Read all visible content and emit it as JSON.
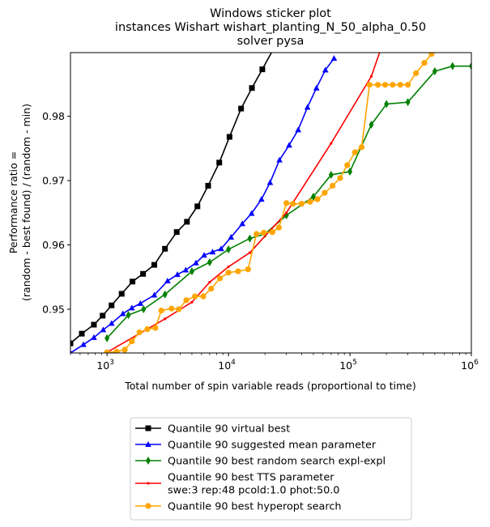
{
  "chart_data": {
    "type": "line",
    "title": [
      "Windows sticker plot",
      "instances Wishart wishart_planting_N_50_alpha_0.50",
      "solver pysa"
    ],
    "xlabel": "Total number of spin variable reads (proportional to time)",
    "ylabel": [
      "Performance ratio =",
      "(random - best found) / (random - min)"
    ],
    "xscale": "log",
    "xlim": [
      500,
      1000000
    ],
    "ylim": [
      0.9432,
      0.9899
    ],
    "x_ticks": [
      {
        "value": 1000,
        "base": "10",
        "exp": "3"
      },
      {
        "value": 10000,
        "base": "10",
        "exp": "4"
      },
      {
        "value": 100000,
        "base": "10",
        "exp": "5"
      },
      {
        "value": 1000000,
        "base": "10",
        "exp": "6"
      }
    ],
    "y_ticks": [
      {
        "value": 0.95,
        "label": "0.95"
      },
      {
        "value": 0.96,
        "label": "0.96"
      },
      {
        "value": 0.97,
        "label": "0.97"
      },
      {
        "value": 0.98,
        "label": "0.98"
      }
    ],
    "legend_position": "below plot",
    "series": [
      {
        "name": [
          "Quantile 90 virtual best"
        ],
        "color": "#000000",
        "marker": "square",
        "points": [
          [
            500,
            0.9447
          ],
          [
            620,
            0.9462
          ],
          [
            780,
            0.9476
          ],
          [
            920,
            0.949
          ],
          [
            1090,
            0.9506
          ],
          [
            1320,
            0.9524
          ],
          [
            1620,
            0.9543
          ],
          [
            1980,
            0.9555
          ],
          [
            2450,
            0.9569
          ],
          [
            3000,
            0.9594
          ],
          [
            3750,
            0.962
          ],
          [
            4550,
            0.9636
          ],
          [
            5550,
            0.966
          ],
          [
            6800,
            0.9692
          ],
          [
            8400,
            0.9728
          ],
          [
            10200,
            0.9768
          ],
          [
            12700,
            0.9812
          ],
          [
            15600,
            0.9844
          ],
          [
            19000,
            0.9873
          ],
          [
            23500,
            0.9905
          ]
        ]
      },
      {
        "name": [
          "Quantile 90 suggested mean parameter"
        ],
        "color": "#0000ff",
        "marker": "triangle",
        "points": [
          [
            500,
            0.9432
          ],
          [
            640,
            0.9445
          ],
          [
            780,
            0.9456
          ],
          [
            930,
            0.9468
          ],
          [
            1090,
            0.9478
          ],
          [
            1350,
            0.9493
          ],
          [
            1600,
            0.9502
          ],
          [
            1880,
            0.9509
          ],
          [
            2450,
            0.9522
          ],
          [
            3150,
            0.9544
          ],
          [
            3800,
            0.9554
          ],
          [
            4450,
            0.9561
          ],
          [
            5400,
            0.9572
          ],
          [
            6300,
            0.9584
          ],
          [
            7400,
            0.9589
          ],
          [
            8700,
            0.9594
          ],
          [
            10500,
            0.9612
          ],
          [
            13000,
            0.9633
          ],
          [
            15500,
            0.9649
          ],
          [
            18700,
            0.9671
          ],
          [
            22000,
            0.9697
          ],
          [
            26300,
            0.9732
          ],
          [
            31600,
            0.9755
          ],
          [
            37500,
            0.9779
          ],
          [
            44700,
            0.9814
          ],
          [
            53000,
            0.9844
          ],
          [
            62800,
            0.9872
          ],
          [
            74000,
            0.989
          ]
        ]
      },
      {
        "name": [
          "Quantile 90  best random search expl-expl"
        ],
        "color": "#008000",
        "marker": "diamond",
        "points": [
          [
            1000,
            0.9455
          ],
          [
            1500,
            0.9491
          ],
          [
            2000,
            0.95
          ],
          [
            3000,
            0.9523
          ],
          [
            5000,
            0.9559
          ],
          [
            7000,
            0.9573
          ],
          [
            10000,
            0.9593
          ],
          [
            15000,
            0.961
          ],
          [
            20000,
            0.9617
          ],
          [
            30000,
            0.9646
          ],
          [
            50000,
            0.9675
          ],
          [
            70000,
            0.9709
          ],
          [
            100000,
            0.9714
          ],
          [
            150000,
            0.9787
          ],
          [
            200000,
            0.9819
          ],
          [
            300000,
            0.9822
          ],
          [
            500000,
            0.987
          ],
          [
            700000,
            0.9878
          ],
          [
            1000000,
            0.9878
          ]
        ]
      },
      {
        "name": [
          "Quantile 90 best TTS parameter",
          "swe:3 rep:48 pcold:1.0 phot:50.0"
        ],
        "color": "#ff0000",
        "marker": "dot",
        "points": [
          [
            1000,
            0.9433
          ],
          [
            3000,
            0.9485
          ],
          [
            5000,
            0.9511
          ],
          [
            7000,
            0.9542
          ],
          [
            10000,
            0.9566
          ],
          [
            15000,
            0.9588
          ],
          [
            30000,
            0.965
          ],
          [
            70000,
            0.9758
          ],
          [
            150000,
            0.9862
          ],
          [
            180000,
            0.9905
          ]
        ]
      },
      {
        "name": [
          "Quantile 90 best hyperopt search"
        ],
        "color": "#ffa500",
        "marker": "circle",
        "points": [
          [
            1000,
            0.9433
          ],
          [
            1200,
            0.9434
          ],
          [
            1400,
            0.9437
          ],
          [
            1600,
            0.945
          ],
          [
            1850,
            0.9464
          ],
          [
            2150,
            0.9469
          ],
          [
            2500,
            0.9471
          ],
          [
            2800,
            0.9498
          ],
          [
            3400,
            0.9501
          ],
          [
            3900,
            0.95
          ],
          [
            4500,
            0.9514
          ],
          [
            5300,
            0.952
          ],
          [
            6200,
            0.952
          ],
          [
            7200,
            0.9532
          ],
          [
            8500,
            0.9548
          ],
          [
            10000,
            0.9557
          ],
          [
            12000,
            0.9559
          ],
          [
            14500,
            0.9562
          ],
          [
            17000,
            0.9617
          ],
          [
            19500,
            0.9619
          ],
          [
            23000,
            0.962
          ],
          [
            26000,
            0.9627
          ],
          [
            30000,
            0.9665
          ],
          [
            34000,
            0.9664
          ],
          [
            40000,
            0.9664
          ],
          [
            47000,
            0.9667
          ],
          [
            54000,
            0.9671
          ],
          [
            62000,
            0.9681
          ],
          [
            72000,
            0.9692
          ],
          [
            83000,
            0.9704
          ],
          [
            95000,
            0.9724
          ],
          [
            110000,
            0.9744
          ],
          [
            125000,
            0.9752
          ],
          [
            145000,
            0.9849
          ],
          [
            170000,
            0.9849
          ],
          [
            195000,
            0.9849
          ],
          [
            225000,
            0.9849
          ],
          [
            260000,
            0.9849
          ],
          [
            300000,
            0.9849
          ],
          [
            350000,
            0.9867
          ],
          [
            410000,
            0.9883
          ],
          [
            470000,
            0.9897
          ]
        ]
      }
    ]
  }
}
